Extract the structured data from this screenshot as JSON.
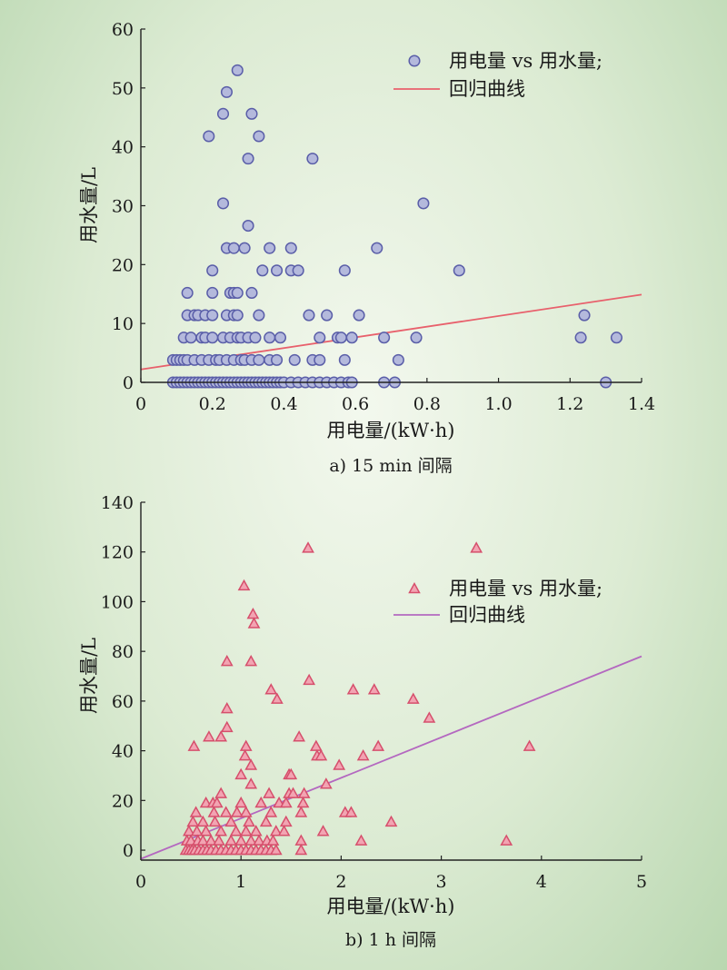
{
  "colors": {
    "circle_fill": "#b4b9dc",
    "circle_stroke": "#5a5ea8",
    "fit_a": "#e8606c",
    "tri_fill": "#f2a4b2",
    "tri_stroke": "#d64f6c",
    "fit_b": "#b468c0"
  },
  "chart_data": [
    {
      "type": "scatter",
      "caption": "a) 15 min 间隔",
      "xlabel": "用电量/(kW·h)",
      "ylabel": "用水量/L",
      "xlim": [
        0,
        1.4
      ],
      "ylim": [
        0,
        60
      ],
      "xticks": [
        "0",
        "0.2",
        "0.4",
        "0.6",
        "0.8",
        "1.0",
        "1.2",
        "1.4"
      ],
      "yticks": [
        "0",
        "10",
        "20",
        "30",
        "40",
        "50",
        "60"
      ],
      "legend": {
        "scatter_label": "用电量 vs 用水量;",
        "line_label": "回归曲线",
        "position": "top-right"
      },
      "marker": "circle",
      "fit_line": {
        "x": [
          0,
          1.4
        ],
        "y": [
          2.2,
          14.9
        ]
      },
      "points": [
        [
          0.27,
          53.0
        ],
        [
          0.24,
          49.3
        ],
        [
          0.23,
          45.6
        ],
        [
          0.31,
          45.6
        ],
        [
          0.19,
          41.8
        ],
        [
          0.33,
          41.8
        ],
        [
          0.3,
          38.0
        ],
        [
          0.48,
          38.0
        ],
        [
          0.23,
          30.4
        ],
        [
          0.79,
          30.4
        ],
        [
          0.3,
          26.6
        ],
        [
          0.24,
          22.8
        ],
        [
          0.26,
          22.8
        ],
        [
          0.29,
          22.8
        ],
        [
          0.36,
          22.8
        ],
        [
          0.42,
          22.8
        ],
        [
          0.66,
          22.8
        ],
        [
          0.2,
          19.0
        ],
        [
          0.34,
          19.0
        ],
        [
          0.38,
          19.0
        ],
        [
          0.42,
          19.0
        ],
        [
          0.44,
          19.0
        ],
        [
          0.57,
          19.0
        ],
        [
          0.89,
          19.0
        ],
        [
          0.13,
          15.2
        ],
        [
          0.2,
          15.2
        ],
        [
          0.25,
          15.2
        ],
        [
          0.26,
          15.2
        ],
        [
          0.27,
          15.2
        ],
        [
          0.31,
          15.2
        ],
        [
          0.13,
          11.4
        ],
        [
          0.15,
          11.4
        ],
        [
          0.16,
          11.4
        ],
        [
          0.18,
          11.4
        ],
        [
          0.2,
          11.4
        ],
        [
          0.24,
          11.4
        ],
        [
          0.26,
          11.4
        ],
        [
          0.27,
          11.4
        ],
        [
          0.33,
          11.4
        ],
        [
          0.47,
          11.4
        ],
        [
          0.52,
          11.4
        ],
        [
          0.61,
          11.4
        ],
        [
          1.24,
          11.4
        ],
        [
          0.12,
          7.6
        ],
        [
          0.14,
          7.6
        ],
        [
          0.17,
          7.6
        ],
        [
          0.18,
          7.6
        ],
        [
          0.2,
          7.6
        ],
        [
          0.23,
          7.6
        ],
        [
          0.25,
          7.6
        ],
        [
          0.27,
          7.6
        ],
        [
          0.28,
          7.6
        ],
        [
          0.3,
          7.6
        ],
        [
          0.32,
          7.6
        ],
        [
          0.36,
          7.6
        ],
        [
          0.39,
          7.6
        ],
        [
          0.5,
          7.6
        ],
        [
          0.55,
          7.6
        ],
        [
          0.56,
          7.6
        ],
        [
          0.59,
          7.6
        ],
        [
          0.68,
          7.6
        ],
        [
          0.77,
          7.6
        ],
        [
          1.23,
          7.6
        ],
        [
          1.33,
          7.6
        ],
        [
          0.09,
          3.8
        ],
        [
          0.1,
          3.8
        ],
        [
          0.11,
          3.8
        ],
        [
          0.12,
          3.8
        ],
        [
          0.13,
          3.8
        ],
        [
          0.15,
          3.8
        ],
        [
          0.17,
          3.8
        ],
        [
          0.19,
          3.8
        ],
        [
          0.21,
          3.8
        ],
        [
          0.22,
          3.8
        ],
        [
          0.24,
          3.8
        ],
        [
          0.26,
          3.8
        ],
        [
          0.28,
          3.8
        ],
        [
          0.29,
          3.8
        ],
        [
          0.31,
          3.8
        ],
        [
          0.33,
          3.8
        ],
        [
          0.36,
          3.8
        ],
        [
          0.38,
          3.8
        ],
        [
          0.43,
          3.8
        ],
        [
          0.48,
          3.8
        ],
        [
          0.5,
          3.8
        ],
        [
          0.57,
          3.8
        ],
        [
          0.72,
          3.8
        ],
        [
          0.09,
          0
        ],
        [
          0.1,
          0
        ],
        [
          0.11,
          0
        ],
        [
          0.12,
          0
        ],
        [
          0.13,
          0
        ],
        [
          0.14,
          0
        ],
        [
          0.15,
          0
        ],
        [
          0.16,
          0
        ],
        [
          0.17,
          0
        ],
        [
          0.18,
          0
        ],
        [
          0.19,
          0
        ],
        [
          0.2,
          0
        ],
        [
          0.21,
          0
        ],
        [
          0.22,
          0
        ],
        [
          0.23,
          0
        ],
        [
          0.24,
          0
        ],
        [
          0.25,
          0
        ],
        [
          0.26,
          0
        ],
        [
          0.27,
          0
        ],
        [
          0.28,
          0
        ],
        [
          0.29,
          0
        ],
        [
          0.3,
          0
        ],
        [
          0.31,
          0
        ],
        [
          0.32,
          0
        ],
        [
          0.33,
          0
        ],
        [
          0.34,
          0
        ],
        [
          0.35,
          0
        ],
        [
          0.36,
          0
        ],
        [
          0.37,
          0
        ],
        [
          0.38,
          0
        ],
        [
          0.39,
          0
        ],
        [
          0.4,
          0
        ],
        [
          0.42,
          0
        ],
        [
          0.44,
          0
        ],
        [
          0.46,
          0
        ],
        [
          0.48,
          0
        ],
        [
          0.5,
          0
        ],
        [
          0.52,
          0
        ],
        [
          0.54,
          0
        ],
        [
          0.56,
          0
        ],
        [
          0.58,
          0
        ],
        [
          0.59,
          0
        ],
        [
          0.68,
          0
        ],
        [
          0.71,
          0
        ],
        [
          1.3,
          0
        ]
      ]
    },
    {
      "type": "scatter",
      "caption": "b) 1 h 间隔",
      "xlabel": "用电量/(kW·h)",
      "ylabel": "用水量/L",
      "xlim": [
        0,
        5
      ],
      "ylim": [
        -4,
        140
      ],
      "xticks": [
        "0",
        "1",
        "2",
        "3",
        "4",
        "5"
      ],
      "yticks": [
        "0",
        "20",
        "40",
        "60",
        "80",
        "100",
        "120",
        "140"
      ],
      "legend": {
        "scatter_label": "用电量 vs 用水量;",
        "line_label": "回归曲线",
        "position": "top-right"
      },
      "marker": "triangle",
      "fit_line": {
        "x": [
          0,
          5
        ],
        "y": [
          -3.5,
          78
        ]
      },
      "points": [
        [
          1.67,
          121.6
        ],
        [
          3.35,
          121.6
        ],
        [
          1.03,
          106.4
        ],
        [
          1.12,
          95.0
        ],
        [
          1.13,
          91.2
        ],
        [
          0.86,
          76.0
        ],
        [
          1.1,
          76.0
        ],
        [
          1.68,
          68.4
        ],
        [
          1.3,
          64.6
        ],
        [
          2.12,
          64.6
        ],
        [
          2.33,
          64.6
        ],
        [
          1.36,
          60.8
        ],
        [
          2.72,
          60.8
        ],
        [
          0.86,
          57.0
        ],
        [
          2.88,
          53.2
        ],
        [
          0.86,
          49.4
        ],
        [
          0.68,
          45.6
        ],
        [
          0.8,
          45.6
        ],
        [
          1.58,
          45.6
        ],
        [
          0.53,
          41.8
        ],
        [
          1.05,
          41.8
        ],
        [
          1.75,
          41.8
        ],
        [
          2.37,
          41.8
        ],
        [
          3.88,
          41.8
        ],
        [
          1.04,
          38.0
        ],
        [
          1.76,
          38.0
        ],
        [
          1.8,
          38.0
        ],
        [
          2.22,
          38.0
        ],
        [
          1.1,
          34.2
        ],
        [
          1.98,
          34.2
        ],
        [
          1.0,
          30.4
        ],
        [
          1.48,
          30.4
        ],
        [
          1.5,
          30.4
        ],
        [
          1.1,
          26.6
        ],
        [
          1.85,
          26.6
        ],
        [
          0.8,
          22.8
        ],
        [
          1.28,
          22.8
        ],
        [
          1.48,
          22.8
        ],
        [
          1.52,
          22.8
        ],
        [
          1.63,
          22.8
        ],
        [
          0.65,
          19.0
        ],
        [
          0.72,
          19.0
        ],
        [
          0.76,
          19.0
        ],
        [
          1.0,
          19.0
        ],
        [
          1.2,
          19.0
        ],
        [
          1.38,
          19.0
        ],
        [
          1.45,
          19.0
        ],
        [
          1.62,
          19.0
        ],
        [
          0.55,
          15.2
        ],
        [
          0.73,
          15.2
        ],
        [
          0.85,
          15.2
        ],
        [
          0.96,
          15.2
        ],
        [
          1.05,
          15.2
        ],
        [
          1.3,
          15.2
        ],
        [
          1.6,
          15.2
        ],
        [
          2.04,
          15.2
        ],
        [
          2.1,
          15.2
        ],
        [
          0.52,
          11.4
        ],
        [
          0.62,
          11.4
        ],
        [
          0.74,
          11.4
        ],
        [
          0.9,
          11.4
        ],
        [
          1.08,
          11.4
        ],
        [
          1.25,
          11.4
        ],
        [
          1.45,
          11.4
        ],
        [
          2.5,
          11.4
        ],
        [
          0.48,
          7.6
        ],
        [
          0.56,
          7.6
        ],
        [
          0.65,
          7.6
        ],
        [
          0.8,
          7.6
        ],
        [
          0.95,
          7.6
        ],
        [
          1.05,
          7.6
        ],
        [
          1.15,
          7.6
        ],
        [
          1.35,
          7.6
        ],
        [
          1.43,
          7.6
        ],
        [
          1.82,
          7.6
        ],
        [
          0.46,
          3.8
        ],
        [
          0.5,
          3.8
        ],
        [
          0.57,
          3.8
        ],
        [
          0.62,
          3.8
        ],
        [
          0.7,
          3.8
        ],
        [
          0.78,
          3.8
        ],
        [
          0.9,
          3.8
        ],
        [
          1.0,
          3.8
        ],
        [
          1.1,
          3.8
        ],
        [
          1.18,
          3.8
        ],
        [
          1.26,
          3.8
        ],
        [
          1.32,
          3.8
        ],
        [
          1.6,
          3.8
        ],
        [
          2.2,
          3.8
        ],
        [
          3.65,
          3.8
        ],
        [
          0.45,
          0
        ],
        [
          0.48,
          0
        ],
        [
          0.51,
          0
        ],
        [
          0.54,
          0
        ],
        [
          0.58,
          0
        ],
        [
          0.62,
          0
        ],
        [
          0.66,
          0
        ],
        [
          0.7,
          0
        ],
        [
          0.75,
          0
        ],
        [
          0.8,
          0
        ],
        [
          0.85,
          0
        ],
        [
          0.9,
          0
        ],
        [
          0.95,
          0
        ],
        [
          1.0,
          0
        ],
        [
          1.05,
          0
        ],
        [
          1.1,
          0
        ],
        [
          1.15,
          0
        ],
        [
          1.2,
          0
        ],
        [
          1.25,
          0
        ],
        [
          1.3,
          0
        ],
        [
          1.35,
          0
        ],
        [
          1.6,
          0
        ]
      ]
    }
  ]
}
